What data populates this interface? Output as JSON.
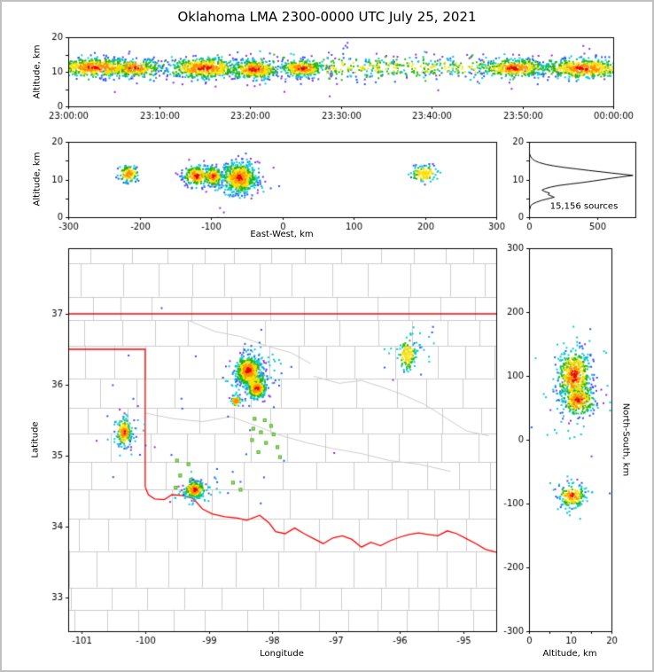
{
  "title": "Oklahoma LMA 2300-0000 UTC July 25, 2021",
  "palette": [
    "#e60000",
    "#ff8c00",
    "#ffe000",
    "#28b400",
    "#00c8d2",
    "#2050ff",
    "#8a2be2"
  ],
  "chart_data": [
    {
      "id": "time_height",
      "type": "scatter",
      "ylabel": "Altitude, km",
      "xlim": [
        0,
        3600
      ],
      "ylim": [
        0,
        20
      ],
      "xticks": {
        "values": [
          0,
          600,
          1200,
          1800,
          2400,
          3000,
          3600
        ],
        "labels": [
          "23:00:00",
          "23:10:00",
          "23:20:00",
          "23:30:00",
          "23:40:00",
          "23:50:00",
          "00:00:00"
        ]
      },
      "yticks": {
        "values": [
          0,
          5,
          10,
          15,
          20
        ],
        "labels": [
          "0",
          "",
          "10",
          "",
          "20"
        ]
      },
      "clusters": [
        {
          "cx": 180,
          "cy": 11.2,
          "sx": 150,
          "sy": 1.4,
          "n": 550
        },
        {
          "cx": 430,
          "cy": 11,
          "sx": 90,
          "sy": 1.3,
          "n": 260
        },
        {
          "cx": 900,
          "cy": 11,
          "sx": 120,
          "sy": 1.5,
          "n": 500
        },
        {
          "cx": 1230,
          "cy": 10.6,
          "sx": 80,
          "sy": 1.4,
          "n": 380
        },
        {
          "cx": 1545,
          "cy": 11,
          "sx": 70,
          "sy": 1.2,
          "n": 300
        },
        {
          "uniform": true,
          "x0": 1700,
          "x1": 2760,
          "cy": 11.3,
          "sy": 1.6,
          "n": 260,
          "lmin": 2
        },
        {
          "cx": 2950,
          "cy": 11,
          "sx": 110,
          "sy": 1.3,
          "n": 380
        },
        {
          "cx": 3405,
          "cy": 11,
          "sx": 140,
          "sy": 1.4,
          "n": 520
        },
        {
          "uniform": true,
          "x0": 10,
          "x1": 3590,
          "cy": 11,
          "sy": 2.6,
          "n": 320,
          "lmin": 3
        }
      ]
    },
    {
      "id": "ew_height",
      "type": "scatter",
      "xlabel": "East-West, km",
      "ylabel": "Altitude, km",
      "xlim": [
        -300,
        300
      ],
      "ylim": [
        0,
        20
      ],
      "xticks": {
        "values": [
          -300,
          -200,
          -100,
          0,
          100,
          200,
          300
        ],
        "labels": [
          "-300",
          "-200",
          "-100",
          "0",
          "100",
          "200",
          "300"
        ]
      },
      "yticks": {
        "values": [
          0,
          5,
          10,
          15,
          20
        ],
        "labels": [
          "0",
          "",
          "10",
          "",
          "20"
        ]
      },
      "clusters": [
        {
          "cx": -215,
          "cy": 11.5,
          "sx": 7,
          "sy": 1.1,
          "n": 110,
          "lmin": 1
        },
        {
          "cx": -120,
          "cy": 11,
          "sx": 9,
          "sy": 1.4,
          "n": 220
        },
        {
          "cx": -97,
          "cy": 10.8,
          "sx": 7,
          "sy": 1.3,
          "n": 170
        },
        {
          "cx": -60,
          "cy": 10.5,
          "sx": 12,
          "sy": 2.0,
          "n": 550
        },
        {
          "cx": -60,
          "cy": 10,
          "sx": 20,
          "sy": 3.4,
          "n": 90,
          "lmin": 4
        },
        {
          "cx": 200,
          "cy": 11.5,
          "sx": 10,
          "sy": 1.1,
          "n": 110,
          "lmin": 2
        }
      ]
    },
    {
      "id": "altitude_histogram",
      "type": "line",
      "annotation": "15,156 sources",
      "xlim": [
        0,
        780
      ],
      "ylim": [
        0,
        20
      ],
      "xticks": {
        "values": [
          0,
          500
        ],
        "labels": [
          "0",
          "500"
        ]
      },
      "yticks": {
        "values": [
          0,
          5,
          10,
          15,
          20
        ],
        "labels": [
          "0",
          "",
          "10",
          "",
          "20"
        ]
      },
      "points_alt_count": [
        [
          0,
          0
        ],
        [
          1,
          2
        ],
        [
          2,
          4
        ],
        [
          3,
          12
        ],
        [
          3.5,
          25
        ],
        [
          4,
          55
        ],
        [
          4.5,
          95
        ],
        [
          5,
          150
        ],
        [
          5.3,
          185
        ],
        [
          5.6,
          165
        ],
        [
          6,
          140
        ],
        [
          6.4,
          150
        ],
        [
          6.8,
          115
        ],
        [
          7.2,
          95
        ],
        [
          7.6,
          120
        ],
        [
          8,
          160
        ],
        [
          8.4,
          215
        ],
        [
          8.8,
          300
        ],
        [
          9.2,
          390
        ],
        [
          9.6,
          470
        ],
        [
          10,
          545
        ],
        [
          10.3,
          600
        ],
        [
          10.6,
          660
        ],
        [
          10.9,
          720
        ],
        [
          11.1,
          762
        ],
        [
          11.4,
          690
        ],
        [
          11.7,
          610
        ],
        [
          12,
          540
        ],
        [
          12.4,
          440
        ],
        [
          12.8,
          350
        ],
        [
          13.2,
          260
        ],
        [
          13.6,
          185
        ],
        [
          14,
          125
        ],
        [
          14.5,
          75
        ],
        [
          15,
          42
        ],
        [
          15.5,
          24
        ],
        [
          16,
          13
        ],
        [
          16.5,
          7
        ],
        [
          17,
          3
        ],
        [
          18,
          1
        ],
        [
          19,
          0
        ],
        [
          20,
          0
        ]
      ]
    },
    {
      "id": "plan_view",
      "type": "scatter",
      "xlabel": "Longitude",
      "ylabel": "Latitude",
      "xlim": [
        -101.21,
        -94.48
      ],
      "ylim": [
        32.525,
        37.925
      ],
      "xticks": {
        "values": [
          -101,
          -100,
          -99,
          -98,
          -97,
          -96,
          -95
        ],
        "labels": [
          "-101",
          "-100",
          "-99",
          "-98",
          "-97",
          "-96",
          "-95"
        ]
      },
      "yticks": {
        "values": [
          33,
          34,
          35,
          36,
          37
        ],
        "labels": [
          "33",
          "34",
          "35",
          "36",
          "37"
        ]
      },
      "map": {
        "county_color": "#cccccc",
        "border_color": "#ff0000",
        "square_fill": "#a8e87c",
        "square_edge": "#55aa33",
        "borders": [
          [
            [
              -101.21,
              37.0
            ],
            [
              -94.48,
              37.0
            ]
          ],
          [
            [
              -101.21,
              36.5
            ],
            [
              -100.0,
              36.5
            ],
            [
              -100.0,
              34.56
            ]
          ],
          [
            [
              -100.0,
              34.56
            ],
            [
              -99.95,
              34.45
            ],
            [
              -99.85,
              34.39
            ],
            [
              -99.7,
              34.38
            ],
            [
              -99.58,
              34.45
            ],
            [
              -99.42,
              34.44
            ],
            [
              -99.25,
              34.4
            ],
            [
              -99.1,
              34.25
            ],
            [
              -98.95,
              34.18
            ],
            [
              -98.75,
              34.14
            ],
            [
              -98.55,
              34.12
            ],
            [
              -98.4,
              34.09
            ],
            [
              -98.2,
              34.16
            ],
            [
              -98.05,
              34.05
            ],
            [
              -97.95,
              33.93
            ],
            [
              -97.8,
              33.9
            ],
            [
              -97.65,
              33.98
            ],
            [
              -97.5,
              33.9
            ],
            [
              -97.35,
              33.83
            ],
            [
              -97.2,
              33.76
            ],
            [
              -97.05,
              33.84
            ],
            [
              -96.9,
              33.87
            ],
            [
              -96.75,
              33.82
            ],
            [
              -96.6,
              33.71
            ],
            [
              -96.45,
              33.78
            ],
            [
              -96.3,
              33.73
            ],
            [
              -96.15,
              33.8
            ],
            [
              -96.0,
              33.85
            ],
            [
              -95.85,
              33.89
            ],
            [
              -95.7,
              33.91
            ],
            [
              -95.55,
              33.89
            ],
            [
              -95.4,
              33.87
            ],
            [
              -95.25,
              33.94
            ],
            [
              -95.1,
              33.9
            ],
            [
              -94.95,
              33.83
            ],
            [
              -94.8,
              33.76
            ],
            [
              -94.65,
              33.68
            ],
            [
              -94.48,
              33.64
            ]
          ]
        ],
        "rivers": [
          [
            [
              -100.0,
              35.6
            ],
            [
              -99.55,
              35.52
            ],
            [
              -99.1,
              35.48
            ],
            [
              -98.65,
              35.55
            ],
            [
              -98.25,
              35.42
            ],
            [
              -97.85,
              35.28
            ],
            [
              -97.45,
              35.18
            ],
            [
              -97.05,
              35.1
            ],
            [
              -96.6,
              35.03
            ],
            [
              -96.15,
              34.93
            ],
            [
              -95.7,
              34.88
            ],
            [
              -95.2,
              34.78
            ]
          ],
          [
            [
              -97.35,
              36.12
            ],
            [
              -96.95,
              36.02
            ],
            [
              -96.6,
              36.06
            ],
            [
              -96.25,
              35.96
            ],
            [
              -95.95,
              35.86
            ],
            [
              -95.6,
              35.72
            ],
            [
              -95.25,
              35.52
            ],
            [
              -94.95,
              35.35
            ],
            [
              -94.6,
              35.28
            ]
          ],
          [
            [
              -99.3,
              36.9
            ],
            [
              -98.9,
              36.75
            ],
            [
              -98.5,
              36.68
            ],
            [
              -98.1,
              36.55
            ],
            [
              -97.7,
              36.45
            ],
            [
              -97.4,
              36.3
            ]
          ]
        ],
        "squares": [
          [
            -98.28,
            35.52
          ],
          [
            -98.12,
            35.5
          ],
          [
            -98.02,
            35.42
          ],
          [
            -98.3,
            35.38
          ],
          [
            -98.18,
            35.33
          ],
          [
            -97.98,
            35.3
          ],
          [
            -98.32,
            35.22
          ],
          [
            -98.1,
            35.18
          ],
          [
            -97.92,
            35.12
          ],
          [
            -98.22,
            35.05
          ],
          [
            -97.88,
            34.98
          ],
          [
            -99.5,
            34.93
          ],
          [
            -99.32,
            34.88
          ],
          [
            -99.45,
            34.72
          ],
          [
            -99.28,
            34.66
          ],
          [
            -99.52,
            34.55
          ],
          [
            -99.38,
            34.47
          ],
          [
            -99.18,
            34.42
          ],
          [
            -98.62,
            34.62
          ],
          [
            -98.5,
            34.52
          ]
        ]
      },
      "clusters": [
        {
          "cx": -98.38,
          "cy": 36.2,
          "sx": 0.1,
          "sy": 0.1,
          "n": 500
        },
        {
          "cx": -98.24,
          "cy": 35.95,
          "sx": 0.07,
          "sy": 0.07,
          "n": 280
        },
        {
          "cx": -98.3,
          "cy": 36.06,
          "sx": 0.1,
          "sy": 0.06,
          "n": 110,
          "lmin": 2
        },
        {
          "cx": -98.3,
          "cy": 36.12,
          "sx": 0.26,
          "sy": 0.2,
          "n": 90,
          "lmin": 4
        },
        {
          "cx": -100.33,
          "cy": 35.33,
          "sx": 0.06,
          "sy": 0.09,
          "n": 160
        },
        {
          "cx": -100.3,
          "cy": 35.3,
          "sx": 0.15,
          "sy": 0.16,
          "n": 40,
          "lmin": 4
        },
        {
          "cx": -99.22,
          "cy": 34.52,
          "sx": 0.08,
          "sy": 0.06,
          "n": 230
        },
        {
          "cx": -99.15,
          "cy": 34.5,
          "sx": 0.2,
          "sy": 0.12,
          "n": 50,
          "lmin": 4
        },
        {
          "cx": -98.57,
          "cy": 35.77,
          "sx": 0.04,
          "sy": 0.04,
          "n": 60,
          "lmin": 1
        },
        {
          "cx": -95.87,
          "cy": 36.42,
          "sx": 0.07,
          "sy": 0.11,
          "n": 110,
          "lmin": 2
        },
        {
          "cx": -95.82,
          "cy": 36.5,
          "sx": 0.2,
          "sy": 0.16,
          "n": 40,
          "lmin": 4
        },
        {
          "cx": -99.3,
          "cy": 35.5,
          "sx": 0.8,
          "sy": 0.7,
          "n": 30,
          "lmin": 5
        }
      ]
    },
    {
      "id": "ns_height",
      "type": "scatter",
      "xlabel": "Altitude, km",
      "ylabel": "North-South, km",
      "xlim": [
        0,
        20
      ],
      "ylim": [
        -300,
        300
      ],
      "xticks": {
        "values": [
          0,
          5,
          10,
          15,
          20
        ],
        "labels": [
          "0",
          "",
          "10",
          "",
          "20"
        ]
      },
      "yticks": {
        "values": [
          -300,
          -200,
          -100,
          0,
          100,
          200,
          300
        ],
        "labels": [
          "-300",
          "-200",
          "-100",
          "0",
          "100",
          "200",
          "300"
        ]
      },
      "clusters": [
        {
          "cx": 11,
          "cy": 100,
          "sx": 2.0,
          "sy": 20,
          "n": 470
        },
        {
          "cx": 12,
          "cy": 62,
          "sx": 2.0,
          "sy": 12,
          "n": 300
        },
        {
          "cx": 11,
          "cy": 90,
          "sx": 4.5,
          "sy": 45,
          "n": 90,
          "lmin": 4
        },
        {
          "cx": 10.5,
          "cy": -88,
          "sx": 1.6,
          "sy": 9,
          "n": 160
        },
        {
          "cx": 10.5,
          "cy": -88,
          "sx": 3.5,
          "sy": 18,
          "n": 30,
          "lmin": 4
        }
      ]
    }
  ]
}
